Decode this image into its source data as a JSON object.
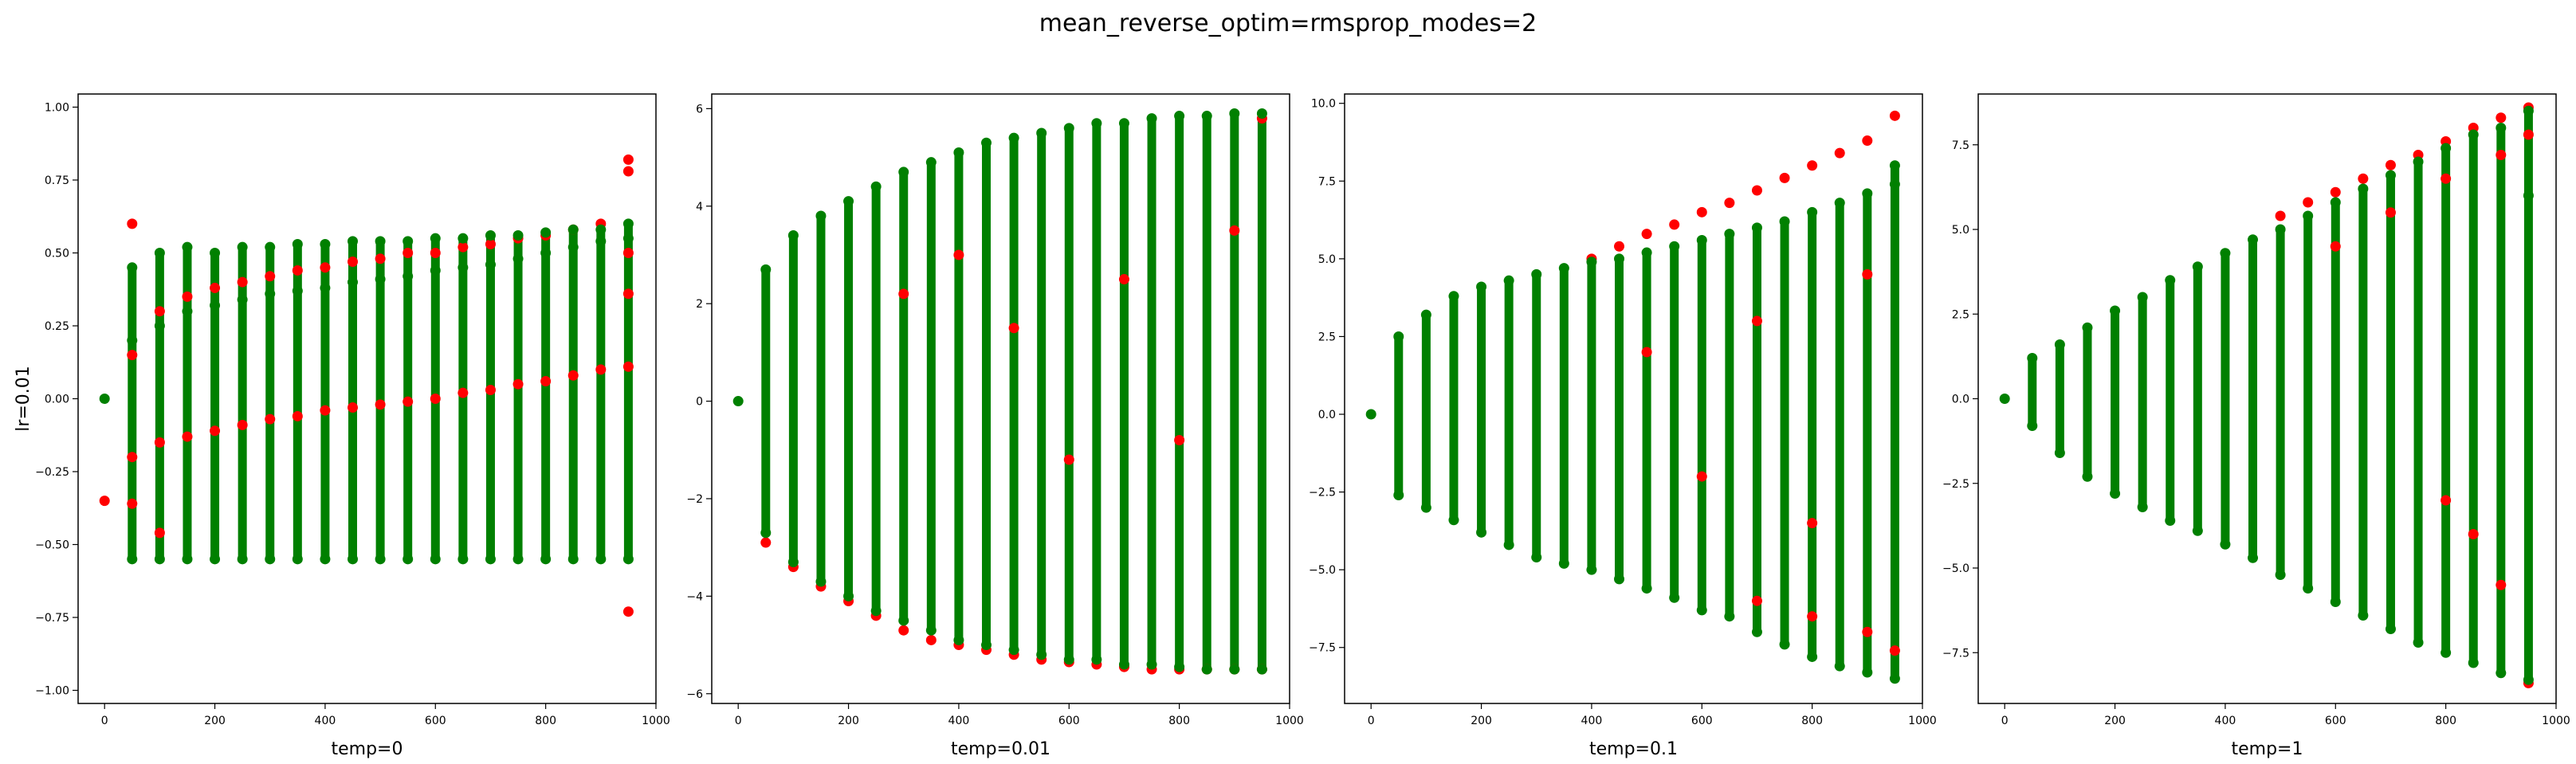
{
  "figure": {
    "title": "mean_reverse_optim=rmsprop_modes=2"
  },
  "colors": {
    "red_series": "#ff0000",
    "green_series": "#008000"
  },
  "chart_data": [
    {
      "type": "scatter",
      "title": "",
      "xlabel": "temp=0",
      "ylabel": "lr=0.01",
      "xlim": [
        -48,
        1000
      ],
      "ylim": [
        -1.045,
        1.045
      ],
      "xticks": [
        0,
        200,
        400,
        600,
        800,
        1000
      ],
      "xtick_labels": [
        "0",
        "200",
        "400",
        "600",
        "800",
        "1000"
      ],
      "yticks": [
        -1.0,
        -0.75,
        -0.5,
        -0.25,
        0.0,
        0.25,
        0.5,
        0.75,
        1.0
      ],
      "ytick_labels": [
        "−1.00",
        "−0.75",
        "−0.50",
        "−0.25",
        "0.00",
        "0.25",
        "0.50",
        "0.75",
        "1.00"
      ],
      "grid": false,
      "series": [
        {
          "color": "#ff0000",
          "x": [
            0,
            50,
            50,
            50,
            50,
            100,
            100,
            100,
            150,
            150,
            200,
            200,
            250,
            250,
            300,
            300,
            350,
            350,
            400,
            400,
            450,
            450,
            500,
            500,
            550,
            550,
            600,
            600,
            650,
            650,
            700,
            700,
            750,
            750,
            800,
            800,
            850,
            850,
            900,
            900,
            950,
            950,
            950,
            950,
            950,
            950
          ],
          "y": [
            -0.35,
            -0.36,
            -0.2,
            0.15,
            0.6,
            -0.46,
            -0.15,
            0.3,
            -0.13,
            0.35,
            -0.11,
            0.38,
            -0.09,
            0.4,
            -0.07,
            0.42,
            -0.06,
            0.44,
            -0.04,
            0.45,
            -0.03,
            0.47,
            -0.02,
            0.48,
            -0.01,
            0.5,
            0.0,
            0.5,
            0.02,
            0.52,
            0.03,
            0.53,
            0.05,
            0.55,
            0.06,
            0.56,
            0.08,
            0.58,
            0.1,
            0.6,
            0.11,
            0.36,
            0.5,
            0.78,
            0.82,
            -0.73
          ]
        },
        {
          "color": "#008000",
          "x": [
            0,
            50,
            50,
            50,
            100,
            100,
            100,
            150,
            150,
            150,
            200,
            200,
            200,
            250,
            250,
            250,
            300,
            300,
            300,
            350,
            350,
            350,
            400,
            400,
            400,
            450,
            450,
            450,
            500,
            500,
            500,
            550,
            550,
            550,
            600,
            600,
            600,
            650,
            650,
            650,
            700,
            700,
            700,
            750,
            750,
            750,
            800,
            800,
            800,
            850,
            850,
            850,
            900,
            900,
            900,
            950,
            950,
            950
          ],
          "y": [
            0.0,
            0.2,
            -0.55,
            0.45,
            0.25,
            -0.55,
            0.5,
            0.3,
            -0.55,
            0.52,
            0.32,
            -0.55,
            0.5,
            0.34,
            -0.55,
            0.52,
            0.36,
            -0.55,
            0.52,
            0.37,
            -0.55,
            0.53,
            0.38,
            -0.55,
            0.53,
            0.4,
            -0.55,
            0.54,
            0.41,
            -0.55,
            0.54,
            0.42,
            -0.55,
            0.54,
            0.44,
            -0.55,
            0.55,
            0.45,
            -0.55,
            0.55,
            0.46,
            -0.55,
            0.56,
            0.48,
            -0.55,
            0.56,
            0.5,
            -0.55,
            0.57,
            0.52,
            -0.55,
            0.58,
            0.54,
            -0.55,
            0.58,
            0.55,
            -0.55,
            0.6
          ]
        }
      ]
    },
    {
      "type": "scatter",
      "title": "",
      "xlabel": "temp=0.01",
      "ylabel": "",
      "xlim": [
        -48,
        1000
      ],
      "ylim": [
        -6.2,
        6.3
      ],
      "xticks": [
        0,
        200,
        400,
        600,
        800,
        1000
      ],
      "xtick_labels": [
        "0",
        "200",
        "400",
        "600",
        "800",
        "1000"
      ],
      "yticks": [
        -6,
        -4,
        -2,
        0,
        2,
        4,
        6
      ],
      "ytick_labels": [
        "−6",
        "−4",
        "−2",
        "0",
        "2",
        "4",
        "6"
      ],
      "grid": false,
      "series": [
        {
          "color": "#ff0000",
          "x": [
            50,
            100,
            150,
            200,
            250,
            300,
            350,
            400,
            450,
            500,
            550,
            600,
            650,
            700,
            750,
            800,
            850,
            900,
            950,
            300,
            400,
            500,
            600,
            700,
            800,
            900,
            950
          ],
          "y": [
            -2.9,
            -3.4,
            -3.8,
            -4.1,
            -4.4,
            -4.7,
            -4.9,
            -5.0,
            -5.1,
            -5.2,
            -5.3,
            -5.35,
            -5.4,
            -5.45,
            -5.5,
            -5.5,
            -5.5,
            -5.5,
            -5.5,
            2.2,
            3.0,
            1.5,
            -1.2,
            2.5,
            -0.8,
            3.5,
            5.8
          ]
        },
        {
          "color": "#008000",
          "x": [
            0,
            50,
            50,
            100,
            100,
            150,
            150,
            200,
            200,
            250,
            250,
            300,
            300,
            350,
            350,
            400,
            400,
            450,
            450,
            500,
            500,
            550,
            550,
            600,
            600,
            650,
            650,
            700,
            700,
            750,
            750,
            800,
            800,
            850,
            850,
            900,
            900,
            950,
            950
          ],
          "y": [
            0.0,
            -2.7,
            2.7,
            -3.3,
            3.4,
            -3.7,
            3.8,
            -4.0,
            4.1,
            -4.3,
            4.4,
            -4.5,
            4.7,
            -4.7,
            4.9,
            -4.9,
            5.1,
            -5.0,
            5.3,
            -5.1,
            5.4,
            -5.2,
            5.5,
            -5.3,
            5.6,
            -5.3,
            5.7,
            -5.4,
            5.7,
            -5.4,
            5.8,
            -5.45,
            5.85,
            -5.5,
            5.85,
            -5.5,
            5.9,
            -5.5,
            5.9
          ]
        }
      ]
    },
    {
      "type": "scatter",
      "title": "",
      "xlabel": "temp=0.1",
      "ylabel": "",
      "xlim": [
        -48,
        1000
      ],
      "ylim": [
        -9.3,
        10.3
      ],
      "xticks": [
        0,
        200,
        400,
        600,
        800,
        1000
      ],
      "xtick_labels": [
        "0",
        "200",
        "400",
        "600",
        "800",
        "1000"
      ],
      "yticks": [
        -7.5,
        -5.0,
        -2.5,
        0.0,
        2.5,
        5.0,
        7.5,
        10.0
      ],
      "ytick_labels": [
        "−7.5",
        "−5.0",
        "−2.5",
        "0.0",
        "2.5",
        "5.0",
        "7.5",
        "10.0"
      ],
      "grid": false,
      "series": [
        {
          "color": "#ff0000",
          "x": [
            400,
            450,
            500,
            550,
            600,
            650,
            700,
            750,
            800,
            850,
            900,
            950,
            700,
            800,
            900,
            950,
            500,
            600,
            700,
            800,
            900
          ],
          "y": [
            5.0,
            5.4,
            5.8,
            6.1,
            6.5,
            6.8,
            7.2,
            7.6,
            8.0,
            8.4,
            8.8,
            9.6,
            -6.0,
            -6.5,
            -7.0,
            -7.6,
            2.0,
            -2.0,
            3.0,
            -3.5,
            4.5
          ]
        },
        {
          "color": "#008000",
          "x": [
            0,
            50,
            50,
            100,
            100,
            150,
            150,
            200,
            200,
            250,
            250,
            300,
            300,
            350,
            350,
            400,
            400,
            450,
            450,
            500,
            500,
            550,
            550,
            600,
            600,
            650,
            650,
            700,
            700,
            750,
            750,
            800,
            800,
            850,
            850,
            900,
            900,
            950,
            950,
            950
          ],
          "y": [
            0.0,
            -2.6,
            2.5,
            -3.0,
            3.2,
            -3.4,
            3.8,
            -3.8,
            4.1,
            -4.2,
            4.3,
            -4.6,
            4.5,
            -4.8,
            4.7,
            -5.0,
            4.9,
            -5.3,
            5.0,
            -5.6,
            5.2,
            -5.9,
            5.4,
            -6.3,
            5.6,
            -6.5,
            5.8,
            -7.0,
            6.0,
            -7.4,
            6.2,
            -7.8,
            6.5,
            -8.1,
            6.8,
            -8.3,
            7.1,
            -8.5,
            7.4,
            8.0
          ]
        }
      ]
    },
    {
      "type": "scatter",
      "title": "",
      "xlabel": "temp=1",
      "ylabel": "",
      "xlim": [
        -48,
        1000
      ],
      "ylim": [
        -9.0,
        9.0
      ],
      "xticks": [
        0,
        200,
        400,
        600,
        800,
        1000
      ],
      "xtick_labels": [
        "0",
        "200",
        "400",
        "600",
        "800",
        "1000"
      ],
      "yticks": [
        -7.5,
        -5.0,
        -2.5,
        0.0,
        2.5,
        5.0,
        7.5
      ],
      "ytick_labels": [
        "−7.5",
        "−5.0",
        "−2.5",
        "0.0",
        "2.5",
        "5.0",
        "7.5"
      ],
      "grid": false,
      "series": [
        {
          "color": "#ff0000",
          "x": [
            500,
            550,
            600,
            650,
            700,
            750,
            800,
            850,
            900,
            950,
            600,
            700,
            800,
            900,
            950,
            800,
            850,
            900,
            950
          ],
          "y": [
            5.4,
            5.8,
            6.1,
            6.5,
            6.9,
            7.2,
            7.6,
            8.0,
            8.3,
            8.6,
            4.5,
            5.5,
            6.5,
            7.2,
            7.8,
            -3.0,
            -4.0,
            -5.5,
            -8.4
          ]
        },
        {
          "color": "#008000",
          "x": [
            0,
            50,
            50,
            100,
            100,
            150,
            150,
            200,
            200,
            250,
            250,
            300,
            300,
            350,
            350,
            400,
            400,
            450,
            450,
            500,
            500,
            550,
            550,
            600,
            600,
            650,
            650,
            700,
            700,
            750,
            750,
            800,
            800,
            850,
            850,
            900,
            900,
            950,
            950,
            950
          ],
          "y": [
            0.0,
            -0.8,
            1.2,
            -1.6,
            1.6,
            -2.3,
            2.1,
            -2.8,
            2.6,
            -3.2,
            3.0,
            -3.6,
            3.5,
            -3.9,
            3.9,
            -4.3,
            4.3,
            -4.7,
            4.7,
            -5.2,
            5.0,
            -5.6,
            5.4,
            -6.0,
            5.8,
            -6.4,
            6.2,
            -6.8,
            6.6,
            -7.2,
            7.0,
            -7.5,
            7.4,
            -7.8,
            7.8,
            -8.1,
            8.0,
            -8.3,
            8.5,
            6.0
          ]
        }
      ]
    }
  ]
}
